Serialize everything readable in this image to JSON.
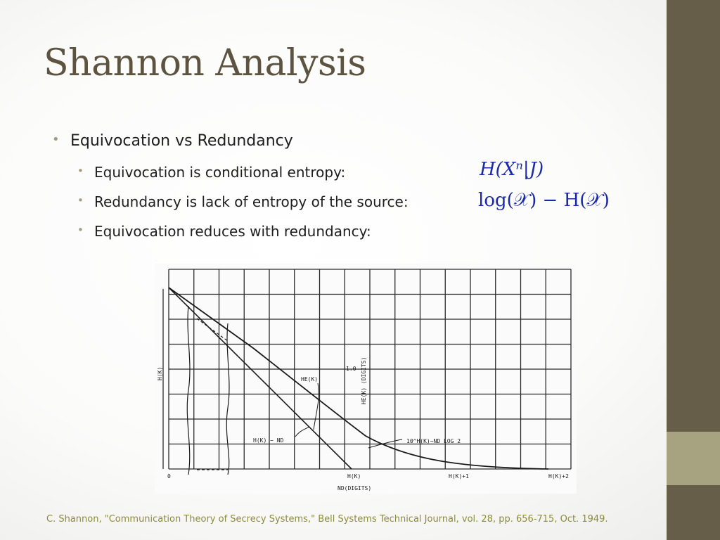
{
  "slide": {
    "title": "Shannon Analysis",
    "bullets": [
      {
        "text": "Equivocation vs Redundancy",
        "level": 1
      },
      {
        "text": "Equivocation is conditional entropy:",
        "level": 2
      },
      {
        "text": "Redundancy is lack of entropy of the source:",
        "level": 2
      },
      {
        "text": "Equivocation reduces with redundancy:",
        "level": 2
      }
    ],
    "formula_equivocation": "H(Xⁿ|J)",
    "formula_redundancy": "log(𝒳) − H(𝒳)",
    "citation": "C. Shannon, \"Communication Theory of Secrecy Systems,\" Bell Systems Technical Journal, vol. 28, pp. 656-715, Oct. 1949."
  },
  "figure": {
    "y_axis_label": "H(K)",
    "x_axis_label": "ND(DIGITS)",
    "x_ticks": [
      "0",
      "H(K)",
      "H(K)+1",
      "H(K)+2"
    ],
    "curve_label_he": "HE(K)",
    "line_label": "H(K) − ND",
    "scale_label": "1.0",
    "right_axis_label": "HE(K) (DIGITS)",
    "asymptote_label": "10^H(K)−ND LOG 2"
  },
  "theme": {
    "sidebar": "#665e48",
    "sidebar_accent": "#a7a27f",
    "title_color": "#5c5341",
    "bullet_color": "#a19c7d",
    "formula_color": "#1a2aa6",
    "citation_color": "#8d8a3c"
  }
}
